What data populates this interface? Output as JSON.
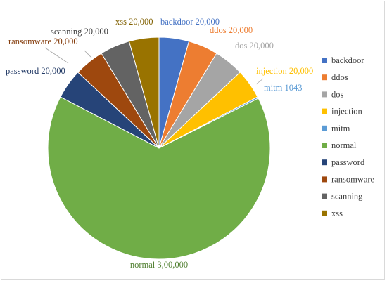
{
  "chart_data": {
    "type": "pie",
    "title": "",
    "legend_position": "right",
    "slices": [
      {
        "label": "backdoor",
        "value": 20000,
        "display": "20,000",
        "color": "#4472C4"
      },
      {
        "label": "ddos",
        "value": 20000,
        "display": "20,000",
        "color": "#ED7D31"
      },
      {
        "label": "dos",
        "value": 20000,
        "display": "20,000",
        "color": "#A5A5A5"
      },
      {
        "label": "injection",
        "value": 20000,
        "display": "20,000",
        "color": "#FFC000"
      },
      {
        "label": "mitm",
        "value": 1043,
        "display": "1043",
        "color": "#5B9BD5"
      },
      {
        "label": "normal",
        "value": 300000,
        "display": "3,00,000",
        "color": "#70AD47"
      },
      {
        "label": "password",
        "value": 20000,
        "display": "20,000",
        "color": "#264478"
      },
      {
        "label": "ransomware",
        "value": 20000,
        "display": "20,000",
        "color": "#9E480E"
      },
      {
        "label": "scanning",
        "value": 20000,
        "display": "20,000",
        "color": "#636363"
      },
      {
        "label": "xss",
        "value": 20000,
        "display": "20,000",
        "color": "#997300"
      }
    ]
  }
}
